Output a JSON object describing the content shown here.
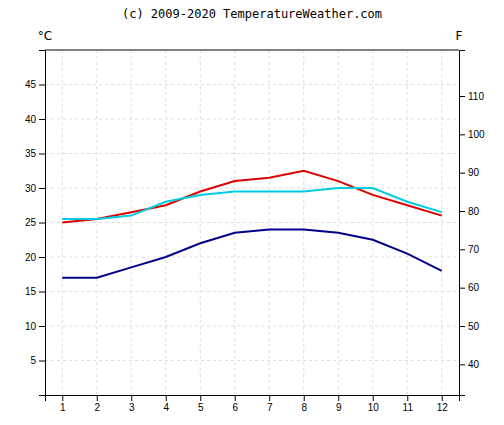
{
  "chart_data": {
    "type": "line",
    "title": "(c) 2009-2020 TemperatureWeather.com",
    "ylabel": "°C",
    "y2label": "F",
    "x": [
      1,
      2,
      3,
      4,
      5,
      6,
      7,
      8,
      9,
      10,
      11,
      12
    ],
    "series": [
      {
        "color": "#dd0000",
        "values": [
          25,
          25.5,
          26.5,
          27.5,
          29.5,
          31,
          31.5,
          32.5,
          31,
          29,
          27.5,
          26
        ]
      },
      {
        "color": "#00ccdd",
        "values": [
          25.5,
          25.5,
          26,
          28,
          29,
          29.5,
          29.5,
          29.5,
          30,
          30,
          28,
          26.5
        ]
      },
      {
        "color": "#000088",
        "values": [
          17,
          17,
          18.5,
          20,
          22,
          23.5,
          24,
          24,
          23.5,
          22.5,
          20.5,
          18
        ]
      }
    ],
    "xlim": [
      0.5,
      12.5
    ],
    "xticks": [
      1,
      2,
      3,
      4,
      5,
      6,
      7,
      8,
      9,
      10,
      11,
      12
    ],
    "ylim": [
      0,
      50
    ],
    "yticks": [
      5,
      10,
      15,
      20,
      25,
      30,
      35,
      40,
      45
    ],
    "y2lim": [
      32,
      122
    ],
    "y2ticks": [
      40,
      50,
      60,
      70,
      80,
      90,
      100,
      110
    ],
    "grid": true
  }
}
